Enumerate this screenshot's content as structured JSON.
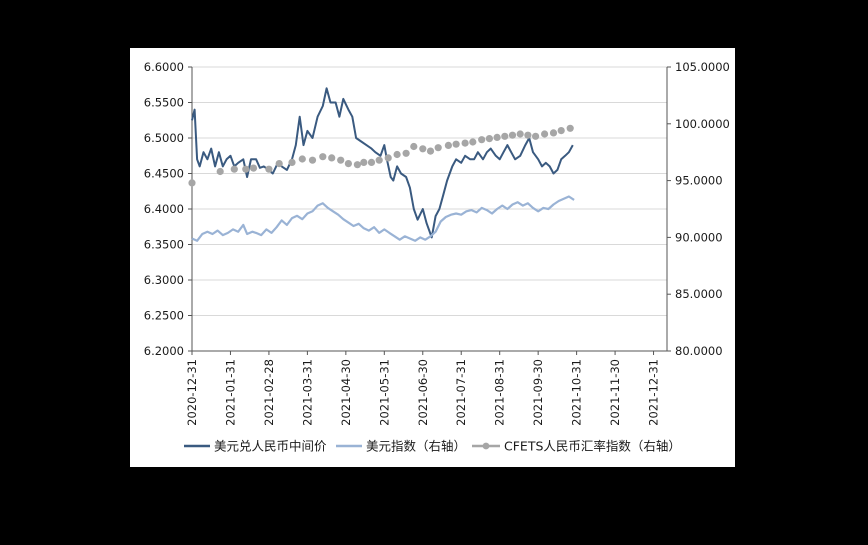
{
  "chart_data": {
    "type": "line",
    "title": "",
    "x_labels": [
      "2020-12-31",
      "2021-01-31",
      "2021-02-28",
      "2021-03-31",
      "2021-04-30",
      "2021-05-31",
      "2021-06-30",
      "2021-07-31",
      "2021-08-31",
      "2021-09-30",
      "2021-10-31",
      "2021-11-30",
      "2021-12-31"
    ],
    "y_left": {
      "min": 6.2,
      "max": 6.6,
      "ticks": [
        "6.2000",
        "6.2500",
        "6.3000",
        "6.3500",
        "6.4000",
        "6.4500",
        "6.5000",
        "6.5500",
        "6.6000"
      ]
    },
    "y_right": {
      "min": 80,
      "max": 105,
      "ticks": [
        "80.0000",
        "85.0000",
        "90.0000",
        "95.0000",
        "100.0000",
        "105.0000"
      ]
    },
    "grid": true,
    "colors": {
      "rmb": "#3a5a80",
      "usd_index": "#9ab3d5",
      "cfets": "#a6a6a6"
    },
    "series": [
      {
        "name": "美元兑人民币中间价",
        "axis": "left",
        "style": "line",
        "points": [
          [
            0,
            6.5249
          ],
          [
            0.2,
            6.54
          ],
          [
            0.4,
            6.47
          ],
          [
            0.6,
            6.46
          ],
          [
            0.9,
            6.48
          ],
          [
            1.2,
            6.47
          ],
          [
            1.5,
            6.485
          ],
          [
            1.8,
            6.46
          ],
          [
            2.1,
            6.48
          ],
          [
            2.4,
            6.46
          ],
          [
            2.7,
            6.47
          ],
          [
            3.0,
            6.475
          ],
          [
            3.3,
            6.46
          ],
          [
            3.6,
            6.465
          ],
          [
            4.0,
            6.47
          ],
          [
            4.3,
            6.445
          ],
          [
            4.6,
            6.47
          ],
          [
            5.0,
            6.47
          ],
          [
            5.3,
            6.458
          ],
          [
            5.6,
            6.46
          ],
          [
            6.0,
            6.455
          ],
          [
            6.3,
            6.45
          ],
          [
            6.7,
            6.465
          ],
          [
            7.0,
            6.46
          ],
          [
            7.4,
            6.455
          ],
          [
            7.8,
            6.47
          ],
          [
            8.1,
            6.49
          ],
          [
            8.4,
            6.53
          ],
          [
            8.7,
            6.49
          ],
          [
            9.0,
            6.51
          ],
          [
            9.4,
            6.5
          ],
          [
            9.8,
            6.53
          ],
          [
            10.2,
            6.545
          ],
          [
            10.5,
            6.57
          ],
          [
            10.8,
            6.55
          ],
          [
            11.2,
            6.55
          ],
          [
            11.5,
            6.53
          ],
          [
            11.8,
            6.555
          ],
          [
            12.2,
            6.54
          ],
          [
            12.5,
            6.53
          ],
          [
            12.8,
            6.5
          ],
          [
            13.2,
            6.495
          ],
          [
            13.6,
            6.49
          ],
          [
            14.0,
            6.485
          ],
          [
            14.3,
            6.48
          ],
          [
            14.7,
            6.475
          ],
          [
            15.0,
            6.49
          ],
          [
            15.2,
            6.47
          ],
          [
            15.5,
            6.445
          ],
          [
            15.7,
            6.44
          ],
          [
            16.0,
            6.46
          ],
          [
            16.3,
            6.45
          ],
          [
            16.7,
            6.445
          ],
          [
            17.0,
            6.43
          ],
          [
            17.3,
            6.4
          ],
          [
            17.6,
            6.385
          ],
          [
            18.0,
            6.4
          ],
          [
            18.3,
            6.38
          ],
          [
            18.7,
            6.36
          ],
          [
            19.0,
            6.39
          ],
          [
            19.3,
            6.4
          ],
          [
            19.6,
            6.42
          ],
          [
            19.9,
            6.44
          ],
          [
            20.3,
            6.46
          ],
          [
            20.6,
            6.47
          ],
          [
            21.0,
            6.465
          ],
          [
            21.3,
            6.475
          ],
          [
            21.7,
            6.47
          ],
          [
            22.0,
            6.47
          ],
          [
            22.3,
            6.48
          ],
          [
            22.7,
            6.47
          ],
          [
            23.0,
            6.48
          ],
          [
            23.3,
            6.485
          ],
          [
            23.7,
            6.475
          ],
          [
            24.0,
            6.47
          ],
          [
            24.3,
            6.48
          ],
          [
            24.6,
            6.49
          ],
          [
            24.9,
            6.48
          ],
          [
            25.2,
            6.47
          ],
          [
            25.6,
            6.475
          ],
          [
            26.0,
            6.49
          ],
          [
            26.3,
            6.5
          ],
          [
            26.6,
            6.48
          ],
          [
            27.0,
            6.47
          ],
          [
            27.3,
            6.46
          ],
          [
            27.6,
            6.465
          ],
          [
            27.9,
            6.46
          ],
          [
            28.2,
            6.45
          ],
          [
            28.5,
            6.455
          ],
          [
            28.8,
            6.47
          ],
          [
            29.1,
            6.475
          ],
          [
            29.4,
            6.48
          ],
          [
            29.7,
            6.49
          ]
        ]
      },
      {
        "name": "美元指数（右轴）",
        "axis": "right",
        "style": "line",
        "points": [
          [
            0,
            89.9
          ],
          [
            0.4,
            89.7
          ],
          [
            0.8,
            90.3
          ],
          [
            1.2,
            90.5
          ],
          [
            1.6,
            90.3
          ],
          [
            2.0,
            90.6
          ],
          [
            2.4,
            90.2
          ],
          [
            2.8,
            90.4
          ],
          [
            3.2,
            90.7
          ],
          [
            3.6,
            90.5
          ],
          [
            4.0,
            91.1
          ],
          [
            4.3,
            90.3
          ],
          [
            4.7,
            90.5
          ],
          [
            5.0,
            90.4
          ],
          [
            5.4,
            90.2
          ],
          [
            5.8,
            90.7
          ],
          [
            6.2,
            90.4
          ],
          [
            6.6,
            90.9
          ],
          [
            7.0,
            91.5
          ],
          [
            7.4,
            91.1
          ],
          [
            7.8,
            91.7
          ],
          [
            8.2,
            91.9
          ],
          [
            8.6,
            91.6
          ],
          [
            9.0,
            92.1
          ],
          [
            9.4,
            92.3
          ],
          [
            9.8,
            92.8
          ],
          [
            10.2,
            93.0
          ],
          [
            10.6,
            92.6
          ],
          [
            11.0,
            92.3
          ],
          [
            11.4,
            92.0
          ],
          [
            11.8,
            91.6
          ],
          [
            12.2,
            91.3
          ],
          [
            12.6,
            91.0
          ],
          [
            13.0,
            91.2
          ],
          [
            13.4,
            90.8
          ],
          [
            13.8,
            90.6
          ],
          [
            14.2,
            90.9
          ],
          [
            14.6,
            90.4
          ],
          [
            15.0,
            90.7
          ],
          [
            15.4,
            90.4
          ],
          [
            15.8,
            90.1
          ],
          [
            16.2,
            89.8
          ],
          [
            16.6,
            90.1
          ],
          [
            17.0,
            89.9
          ],
          [
            17.4,
            89.7
          ],
          [
            17.8,
            90.0
          ],
          [
            18.2,
            89.8
          ],
          [
            18.6,
            90.1
          ],
          [
            19.0,
            90.5
          ],
          [
            19.4,
            91.4
          ],
          [
            19.8,
            91.8
          ],
          [
            20.2,
            92.0
          ],
          [
            20.6,
            92.1
          ],
          [
            21.0,
            92.0
          ],
          [
            21.4,
            92.3
          ],
          [
            21.8,
            92.4
          ],
          [
            22.2,
            92.2
          ],
          [
            22.6,
            92.6
          ],
          [
            23.0,
            92.4
          ],
          [
            23.4,
            92.1
          ],
          [
            23.8,
            92.5
          ],
          [
            24.2,
            92.8
          ],
          [
            24.6,
            92.5
          ],
          [
            25.0,
            92.9
          ],
          [
            25.4,
            93.1
          ],
          [
            25.8,
            92.8
          ],
          [
            26.2,
            93.0
          ],
          [
            26.6,
            92.6
          ],
          [
            27.0,
            92.3
          ],
          [
            27.4,
            92.6
          ],
          [
            27.8,
            92.5
          ],
          [
            28.2,
            92.9
          ],
          [
            28.6,
            93.2
          ],
          [
            29.0,
            93.4
          ],
          [
            29.4,
            93.6
          ],
          [
            29.8,
            93.3
          ]
        ]
      },
      {
        "name": "CFETS人民币汇率指数（右轴）",
        "axis": "right",
        "style": "markers",
        "points": [
          [
            0,
            94.8
          ],
          [
            2.2,
            95.8
          ],
          [
            3.3,
            96.0
          ],
          [
            4.2,
            96.0
          ],
          [
            4.8,
            96.1
          ],
          [
            6.0,
            96.0
          ],
          [
            6.8,
            96.5
          ],
          [
            7.8,
            96.6
          ],
          [
            8.6,
            96.9
          ],
          [
            9.4,
            96.8
          ],
          [
            10.2,
            97.1
          ],
          [
            10.9,
            97.0
          ],
          [
            11.6,
            96.8
          ],
          [
            12.2,
            96.5
          ],
          [
            12.9,
            96.4
          ],
          [
            13.4,
            96.6
          ],
          [
            14.0,
            96.6
          ],
          [
            14.6,
            96.8
          ],
          [
            15.3,
            97.0
          ],
          [
            16.0,
            97.3
          ],
          [
            16.7,
            97.4
          ],
          [
            17.3,
            98.0
          ],
          [
            18.0,
            97.8
          ],
          [
            18.6,
            97.6
          ],
          [
            19.2,
            97.9
          ],
          [
            20.0,
            98.1
          ],
          [
            20.6,
            98.2
          ],
          [
            21.3,
            98.3
          ],
          [
            21.9,
            98.4
          ],
          [
            22.6,
            98.6
          ],
          [
            23.2,
            98.7
          ],
          [
            23.8,
            98.8
          ],
          [
            24.4,
            98.9
          ],
          [
            25.0,
            99.0
          ],
          [
            25.6,
            99.1
          ],
          [
            26.2,
            99.0
          ],
          [
            26.8,
            98.9
          ],
          [
            27.5,
            99.1
          ],
          [
            28.2,
            99.2
          ],
          [
            28.8,
            99.4
          ],
          [
            29.5,
            99.6
          ]
        ]
      }
    ]
  },
  "legend": [
    {
      "label": "美元兑人民币中间价"
    },
    {
      "label": "美元指数（右轴）"
    },
    {
      "label": "CFETS人民币汇率指数（右轴）"
    }
  ]
}
